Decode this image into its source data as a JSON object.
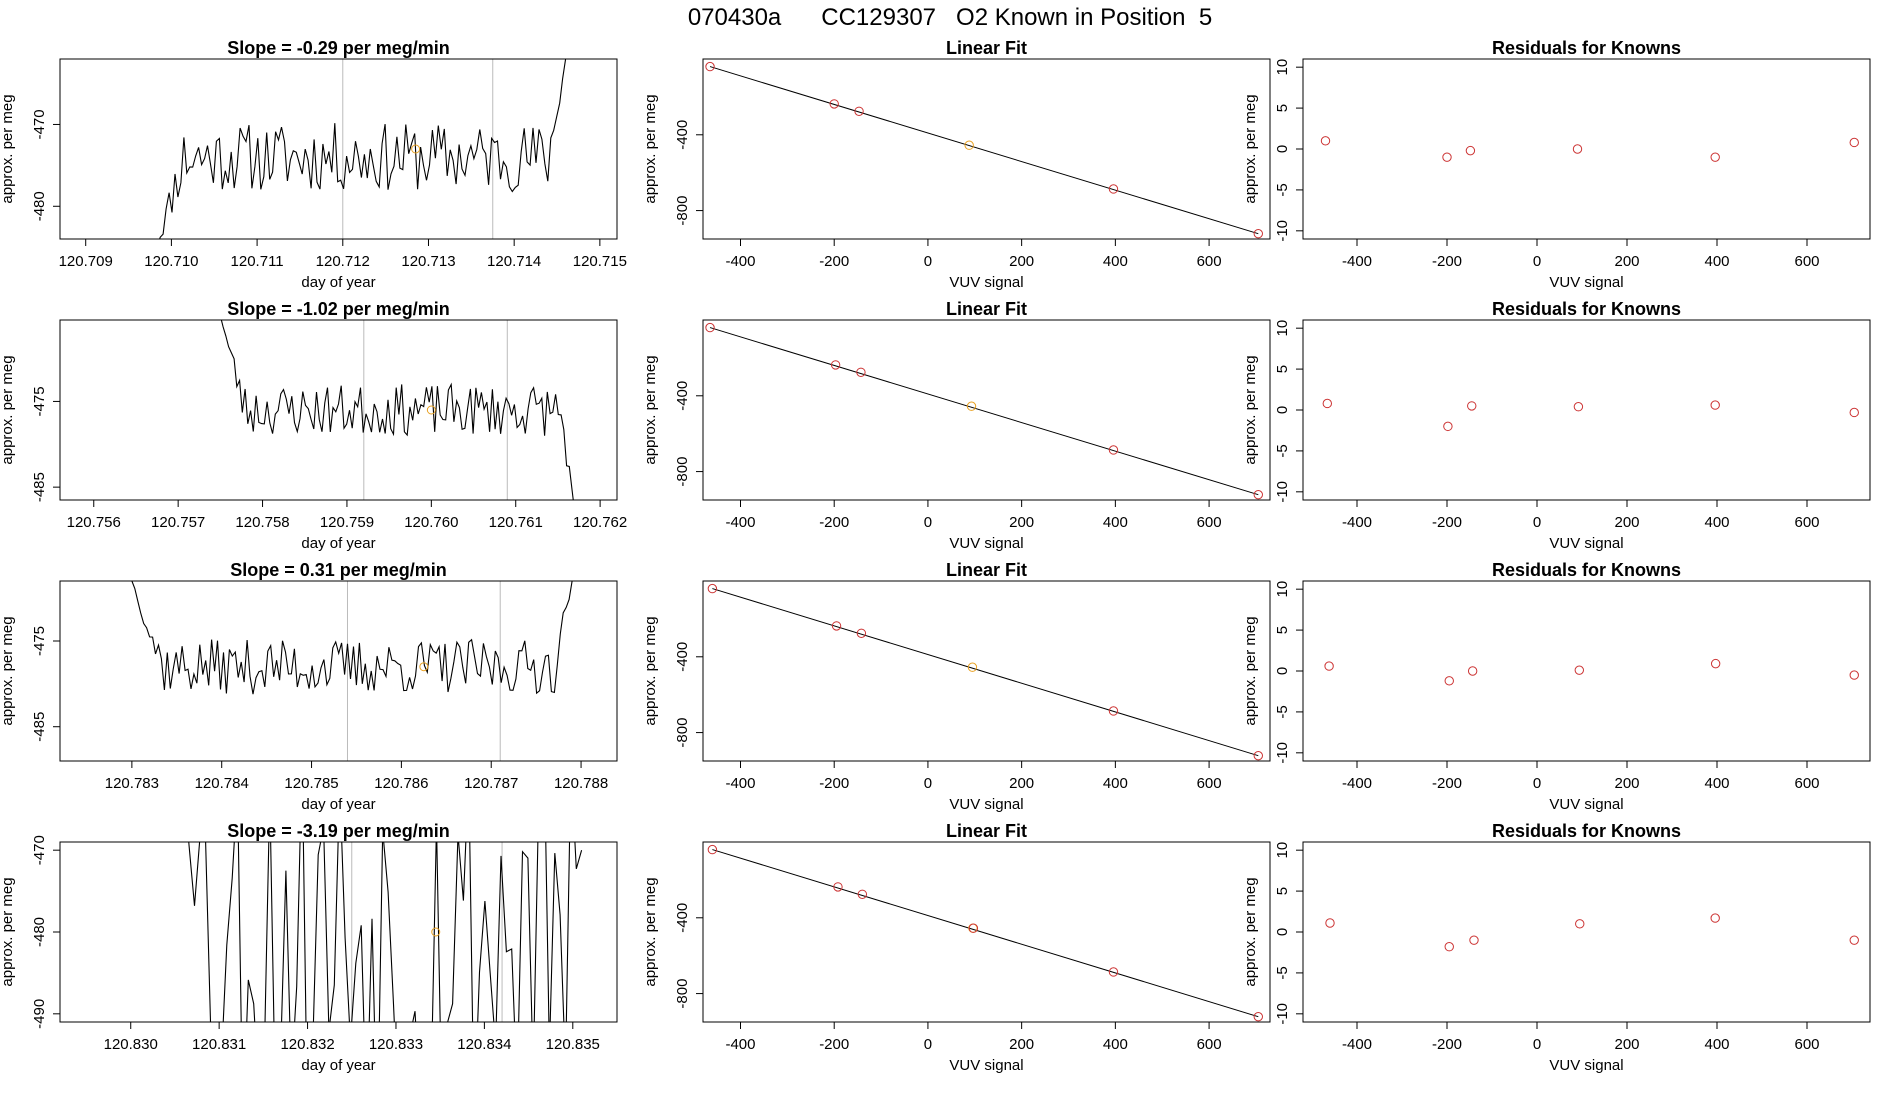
{
  "page_title": "070430a      CC129307   O2 Known in Position  5",
  "colors": {
    "trace": "#000000",
    "known_point": "#cc3333",
    "sample_point": "#e8a020",
    "guide_line": "#bbbbbb"
  },
  "chart_data": [
    {
      "type": "line",
      "title": "Slope =  -0.29  per meg/min",
      "xlabel": "day of year",
      "ylabel": "approx. per meg",
      "xlim": [
        120.7087,
        120.7152
      ],
      "ylim": [
        -484,
        -462
      ],
      "xticks": [
        120.709,
        120.71,
        120.711,
        120.712,
        120.713,
        120.714,
        120.715
      ],
      "xtick_labels": [
        "120.709",
        "120.710",
        "120.711",
        "120.712",
        "120.713",
        "120.714",
        "120.715"
      ],
      "yticks": [
        -480,
        -470
      ],
      "ytick_labels": [
        "-480",
        "-470"
      ],
      "vlines": [
        120.712,
        120.71375
      ],
      "series_start": 120.7098,
      "series_end": 120.7146,
      "series_n": 140,
      "baseline": -474,
      "noise": 4.2,
      "seed": 11,
      "start_value": -486,
      "end_value": -462,
      "marker": {
        "x": 120.71285,
        "y": -473
      }
    },
    {
      "type": "scatter",
      "title": "Linear Fit",
      "xlabel": "VUV signal",
      "ylabel": "approx. per meg",
      "xlim": [
        -480,
        730
      ],
      "ylim": [
        -950,
        0
      ],
      "xticks": [
        -400,
        -200,
        0,
        200,
        400,
        600
      ],
      "xtick_labels": [
        "-400",
        "-200",
        "0",
        "200",
        "400",
        "600"
      ],
      "yticks": [
        -800,
        -400
      ],
      "ytick_labels": [
        "-800",
        "-400"
      ],
      "fit_line": {
        "x0": -465,
        "y0": -40,
        "x1": 705,
        "y1": -922
      },
      "points": [
        {
          "x": -465,
          "y": -40,
          "known": true
        },
        {
          "x": -200,
          "y": -237,
          "known": true
        },
        {
          "x": -147,
          "y": -276,
          "known": true
        },
        {
          "x": 88,
          "y": -455,
          "known": false
        },
        {
          "x": 396,
          "y": -686,
          "known": true
        },
        {
          "x": 705,
          "y": -922,
          "known": true
        }
      ]
    },
    {
      "type": "scatter",
      "title": "Residuals for Knowns",
      "xlabel": "VUV signal",
      "ylabel": "approx. per meg",
      "xlim": [
        -520,
        740
      ],
      "ylim": [
        -11,
        11
      ],
      "xticks": [
        -400,
        -200,
        0,
        200,
        400,
        600
      ],
      "xtick_labels": [
        "-400",
        "-200",
        "0",
        "200",
        "400",
        "600"
      ],
      "yticks": [
        -10,
        -5,
        0,
        5,
        10
      ],
      "ytick_labels": [
        "-10",
        "-5",
        "0",
        "5",
        "10"
      ],
      "points": [
        {
          "x": -470,
          "y": 1.0
        },
        {
          "x": -200,
          "y": -1.0
        },
        {
          "x": -148,
          "y": -0.2
        },
        {
          "x": 90,
          "y": 0.0
        },
        {
          "x": 396,
          "y": -1.0
        },
        {
          "x": 705,
          "y": 0.8
        }
      ]
    },
    {
      "type": "line",
      "title": "Slope =  -1.02  per meg/min",
      "xlabel": "day of year",
      "ylabel": "approx. per meg",
      "xlim": [
        120.7556,
        120.7622
      ],
      "ylim": [
        -486.5,
        -465.5
      ],
      "xticks": [
        120.756,
        120.757,
        120.758,
        120.759,
        120.76,
        120.761,
        120.762
      ],
      "xtick_labels": [
        "120.756",
        "120.757",
        "120.758",
        "120.759",
        "120.760",
        "120.761",
        "120.762"
      ],
      "yticks": [
        -485,
        -475
      ],
      "ytick_labels": [
        "-485",
        "-475"
      ],
      "vlines": [
        120.7592,
        120.7609
      ],
      "series_start": 120.7575,
      "series_end": 120.7617,
      "series_n": 130,
      "baseline": -476,
      "noise": 3.0,
      "seed": 23,
      "start_value": -465,
      "end_value": -488,
      "marker": {
        "x": 120.76,
        "y": -476
      }
    },
    {
      "type": "scatter",
      "title": "Linear Fit",
      "xlabel": "VUV signal",
      "ylabel": "approx. per meg",
      "xlim": [
        -480,
        730
      ],
      "ylim": [
        -950,
        0
      ],
      "xticks": [
        -400,
        -200,
        0,
        200,
        400,
        600
      ],
      "xtick_labels": [
        "-400",
        "-200",
        "0",
        "200",
        "400",
        "600"
      ],
      "yticks": [
        -800,
        -400
      ],
      "ytick_labels": [
        "-800",
        "-400"
      ],
      "fit_line": {
        "x0": -465,
        "y0": -40,
        "x1": 705,
        "y1": -922
      },
      "points": [
        {
          "x": -465,
          "y": -40,
          "known": true
        },
        {
          "x": -197,
          "y": -237,
          "known": true
        },
        {
          "x": -143,
          "y": -276,
          "known": true
        },
        {
          "x": 93,
          "y": -455,
          "known": false
        },
        {
          "x": 396,
          "y": -686,
          "known": true
        },
        {
          "x": 705,
          "y": -922,
          "known": true
        }
      ]
    },
    {
      "type": "scatter",
      "title": "Residuals for Knowns",
      "xlabel": "VUV signal",
      "ylabel": "approx. per meg",
      "xlim": [
        -520,
        740
      ],
      "ylim": [
        -11,
        11
      ],
      "xticks": [
        -400,
        -200,
        0,
        200,
        400,
        600
      ],
      "xtick_labels": [
        "-400",
        "-200",
        "0",
        "200",
        "400",
        "600"
      ],
      "yticks": [
        -10,
        -5,
        0,
        5,
        10
      ],
      "ytick_labels": [
        "-10",
        "-5",
        "0",
        "5",
        "10"
      ],
      "points": [
        {
          "x": -466,
          "y": 0.8
        },
        {
          "x": -198,
          "y": -2.0
        },
        {
          "x": -145,
          "y": 0.5
        },
        {
          "x": 92,
          "y": 0.4
        },
        {
          "x": 396,
          "y": 0.6
        },
        {
          "x": 705,
          "y": -0.3
        }
      ]
    },
    {
      "type": "line",
      "title": "Slope =  0.31  per meg/min",
      "xlabel": "day of year",
      "ylabel": "approx. per meg",
      "xlim": [
        120.7822,
        120.7884
      ],
      "ylim": [
        -489,
        -468
      ],
      "xticks": [
        120.783,
        120.784,
        120.785,
        120.786,
        120.787,
        120.788
      ],
      "xtick_labels": [
        "120.783",
        "120.784",
        "120.785",
        "120.786",
        "120.787",
        "120.788"
      ],
      "yticks": [
        -485,
        -475
      ],
      "ytick_labels": [
        "-485",
        "-475"
      ],
      "vlines": [
        120.7854,
        120.7871
      ],
      "series_start": 120.783,
      "series_end": 120.7879,
      "series_n": 150,
      "baseline": -478,
      "noise": 3.2,
      "seed": 37,
      "start_value": -468,
      "end_value": -468,
      "marker": {
        "x": 120.78625,
        "y": -478
      }
    },
    {
      "type": "scatter",
      "title": "Linear Fit",
      "xlabel": "VUV signal",
      "ylabel": "approx. per meg",
      "xlim": [
        -480,
        730
      ],
      "ylim": [
        -950,
        0
      ],
      "xticks": [
        -400,
        -200,
        0,
        200,
        400,
        600
      ],
      "xtick_labels": [
        "-400",
        "-200",
        "0",
        "200",
        "400",
        "600"
      ],
      "yticks": [
        -800,
        -400
      ],
      "ytick_labels": [
        "-800",
        "-400"
      ],
      "fit_line": {
        "x0": -460,
        "y0": -40,
        "x1": 705,
        "y1": -922
      },
      "points": [
        {
          "x": -460,
          "y": -40,
          "known": true
        },
        {
          "x": -195,
          "y": -237,
          "known": true
        },
        {
          "x": -142,
          "y": -276,
          "known": true
        },
        {
          "x": 95,
          "y": -455,
          "known": false
        },
        {
          "x": 396,
          "y": -686,
          "known": true
        },
        {
          "x": 705,
          "y": -922,
          "known": true
        }
      ]
    },
    {
      "type": "scatter",
      "title": "Residuals for Knowns",
      "xlabel": "VUV signal",
      "ylabel": "approx. per meg",
      "xlim": [
        -520,
        740
      ],
      "ylim": [
        -11,
        11
      ],
      "xticks": [
        -400,
        -200,
        0,
        200,
        400,
        600
      ],
      "xtick_labels": [
        "-400",
        "-200",
        "0",
        "200",
        "400",
        "600"
      ],
      "yticks": [
        -10,
        -5,
        0,
        5,
        10
      ],
      "ytick_labels": [
        "-10",
        "-5",
        "0",
        "5",
        "10"
      ],
      "points": [
        {
          "x": -462,
          "y": 0.6
        },
        {
          "x": -195,
          "y": -1.2
        },
        {
          "x": -143,
          "y": 0.0
        },
        {
          "x": 94,
          "y": 0.1
        },
        {
          "x": 397,
          "y": 0.9
        },
        {
          "x": 705,
          "y": -0.5
        }
      ]
    },
    {
      "type": "line",
      "title": "Slope =  -3.19  per meg/min",
      "xlabel": "day of year",
      "ylabel": "approx. per meg",
      "xlim": [
        120.8292,
        120.8355
      ],
      "ylim": [
        -491,
        -469
      ],
      "xticks": [
        120.83,
        120.831,
        120.832,
        120.833,
        120.834,
        120.835
      ],
      "xtick_labels": [
        "120.830",
        "120.831",
        "120.832",
        "120.833",
        "120.834",
        "120.835"
      ],
      "yticks": [
        -490,
        -480,
        -470
      ],
      "ytick_labels": [
        "-490",
        "-480",
        "-470"
      ],
      "vlines": [
        120.8325,
        120.8342
      ],
      "series_start": 120.8306,
      "series_end": 120.8351,
      "series_n": 75,
      "baseline": -480,
      "noise": 26,
      "seed": 53,
      "start_value": -462,
      "end_value": -470,
      "marker": {
        "x": 120.83345,
        "y": -480
      }
    },
    {
      "type": "scatter",
      "title": "Linear Fit",
      "xlabel": "VUV signal",
      "ylabel": "approx. per meg",
      "xlim": [
        -480,
        730
      ],
      "ylim": [
        -950,
        0
      ],
      "xticks": [
        -400,
        -200,
        0,
        200,
        400,
        600
      ],
      "xtick_labels": [
        "-400",
        "-200",
        "0",
        "200",
        "400",
        "600"
      ],
      "yticks": [
        -800,
        -400
      ],
      "ytick_labels": [
        "-800",
        "-400"
      ],
      "fit_line": {
        "x0": -460,
        "y0": -40,
        "x1": 705,
        "y1": -922
      },
      "points": [
        {
          "x": -460,
          "y": -40,
          "known": true
        },
        {
          "x": -192,
          "y": -237,
          "known": true
        },
        {
          "x": -140,
          "y": -276,
          "known": true
        },
        {
          "x": 96,
          "y": -455,
          "known": false
        },
        {
          "x": 97,
          "y": -455,
          "known": true
        },
        {
          "x": 396,
          "y": -686,
          "known": true
        },
        {
          "x": 705,
          "y": -922,
          "known": true
        }
      ]
    },
    {
      "type": "scatter",
      "title": "Residuals for Knowns",
      "xlabel": "VUV signal",
      "ylabel": "approx. per meg",
      "xlim": [
        -520,
        740
      ],
      "ylim": [
        -11,
        11
      ],
      "xticks": [
        -400,
        -200,
        0,
        200,
        400,
        600
      ],
      "xtick_labels": [
        "-400",
        "-200",
        "0",
        "200",
        "400",
        "600"
      ],
      "yticks": [
        -10,
        -5,
        0,
        5,
        10
      ],
      "ytick_labels": [
        "-10",
        "-5",
        "0",
        "5",
        "10"
      ],
      "points": [
        {
          "x": -460,
          "y": 1.1
        },
        {
          "x": -195,
          "y": -1.8
        },
        {
          "x": -140,
          "y": -1.0
        },
        {
          "x": 95,
          "y": 1.0
        },
        {
          "x": 396,
          "y": 1.7
        },
        {
          "x": 705,
          "y": -1.0
        }
      ]
    }
  ]
}
